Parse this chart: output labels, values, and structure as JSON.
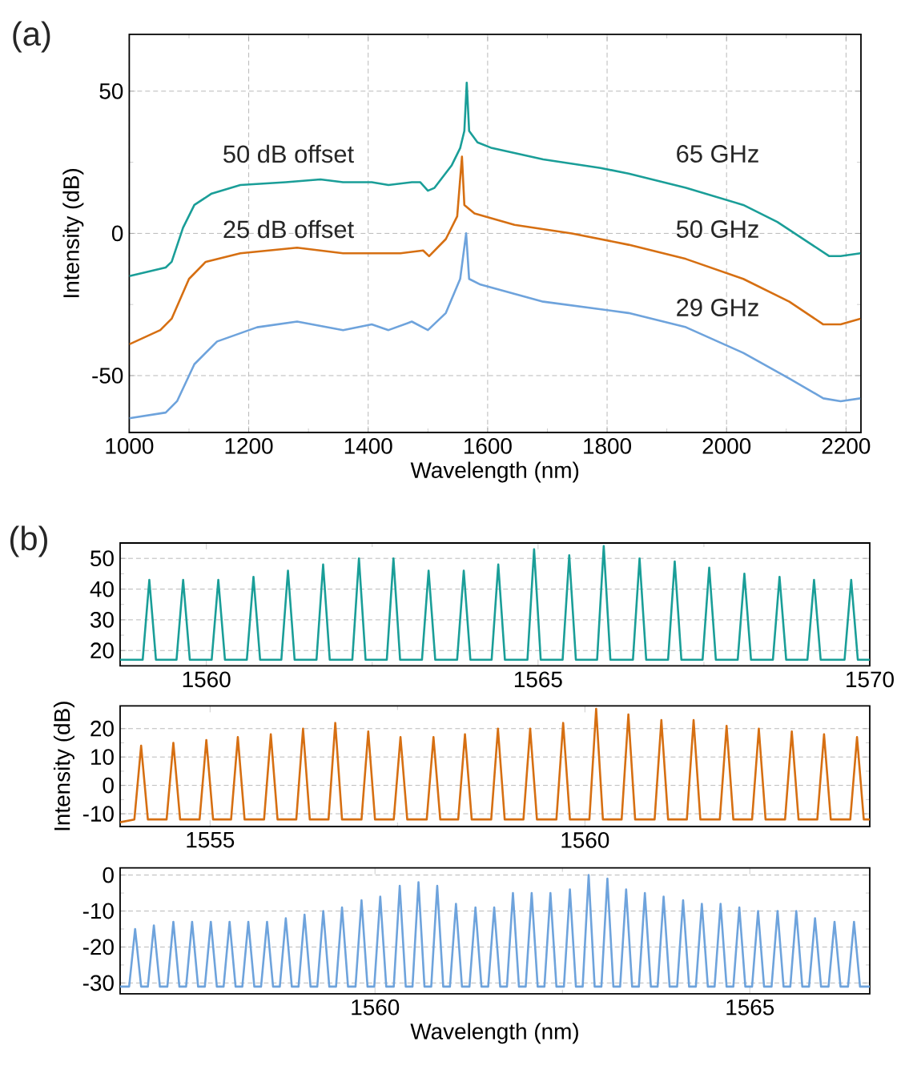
{
  "chart_data": [
    {
      "type": "line",
      "xlabel": "Wavelength (nm)",
      "ylabel": "Intensity (dB)",
      "xlim": [
        1000,
        2225
      ],
      "ylim": [
        -70,
        70
      ],
      "xticks": [
        1000,
        1200,
        1400,
        1600,
        1800,
        2000,
        2200
      ],
      "yticks": [
        -50,
        0,
        50
      ],
      "grid": true,
      "annotations": [
        "(a)",
        "50 dB offset",
        "25 dB offset",
        "65 GHz",
        "50 GHz",
        "29 GHz"
      ],
      "series": [
        {
          "color": "#1a9e98",
          "x": [
            1000,
            1061,
            1071,
            1090,
            1109,
            1138,
            1186,
            1262,
            1320,
            1358,
            1406,
            1434,
            1473,
            1487,
            1500,
            1511,
            1540,
            1554,
            1561,
            1565,
            1569,
            1583,
            1607,
            1693,
            1789,
            1836,
            1932,
            2028,
            2085,
            2143,
            2172,
            2191,
            2224
          ],
          "values": [
            -15,
            -12,
            -10,
            2,
            10,
            14,
            17,
            18,
            19,
            18,
            18,
            17,
            18,
            18,
            15,
            16,
            24,
            30,
            36,
            53,
            36,
            32,
            30,
            26,
            23,
            21,
            16,
            10,
            4,
            -4,
            -8,
            -8,
            -7
          ]
        },
        {
          "color": "#d66f12",
          "x": [
            1000,
            1052,
            1071,
            1100,
            1128,
            1186,
            1281,
            1358,
            1454,
            1492,
            1502,
            1530,
            1549,
            1557,
            1561,
            1578,
            1645,
            1741,
            1836,
            1932,
            2028,
            2105,
            2162,
            2191,
            2224
          ],
          "values": [
            -39,
            -34,
            -30,
            -16,
            -10,
            -7,
            -5,
            -7,
            -7,
            -6,
            -8,
            -2,
            6,
            27,
            10,
            7,
            3,
            0,
            -4,
            -9,
            -16,
            -24,
            -32,
            -32,
            -30
          ]
        },
        {
          "color": "#6ea3dc",
          "x": [
            1000,
            1061,
            1080,
            1109,
            1147,
            1214,
            1281,
            1358,
            1406,
            1434,
            1473,
            1500,
            1530,
            1554,
            1564,
            1569,
            1588,
            1693,
            1836,
            1932,
            2028,
            2105,
            2162,
            2191,
            2224
          ],
          "values": [
            -65,
            -63,
            -59,
            -46,
            -38,
            -33,
            -31,
            -34,
            -32,
            -34,
            -31,
            -34,
            -28,
            -16,
            0,
            -16,
            -18,
            -24,
            -28,
            -33,
            -42,
            -51,
            -58,
            -59,
            -58
          ]
        }
      ]
    },
    {
      "type": "line",
      "xlim": [
        1558.7,
        1570
      ],
      "ylim": [
        15,
        55
      ],
      "xticks": [
        1560,
        1565,
        1570
      ],
      "yticks": [
        20,
        30,
        40,
        50
      ],
      "grid": "y",
      "annotations": [
        "(b)"
      ],
      "series": [
        {
          "color": "#1a9e98",
          "x": [
            1558.7,
            1559.04,
            1559.14,
            1559.24,
            1559.55,
            1559.65,
            1559.75,
            1560.08,
            1560.18,
            1560.28,
            1560.61,
            1560.71,
            1560.81,
            1561.13,
            1561.23,
            1561.33,
            1561.66,
            1561.76,
            1561.86,
            1562.2,
            1562.3,
            1562.4,
            1562.72,
            1562.82,
            1562.92,
            1563.25,
            1563.35,
            1563.45,
            1563.78,
            1563.88,
            1563.98,
            1564.3,
            1564.4,
            1564.5,
            1564.84,
            1564.94,
            1565.04,
            1565.37,
            1565.47,
            1565.57,
            1565.89,
            1565.99,
            1566.09,
            1566.43,
            1566.53,
            1566.63,
            1566.96,
            1567.06,
            1567.16,
            1567.48,
            1567.58,
            1567.68,
            1568.01,
            1568.11,
            1568.21,
            1568.54,
            1568.64,
            1568.74,
            1569.06,
            1569.16,
            1569.26,
            1569.62,
            1569.72,
            1569.82,
            1570
          ],
          "values": [
            17,
            17,
            43,
            17,
            17,
            43,
            17,
            17,
            43,
            17,
            17,
            44,
            17,
            17,
            46,
            17,
            17,
            48,
            17,
            17,
            50,
            17,
            17,
            50,
            17,
            17,
            46,
            17,
            17,
            46,
            17,
            17,
            48,
            17,
            17,
            53,
            17,
            17,
            51,
            17,
            17,
            54,
            17,
            17,
            50,
            17,
            17,
            49,
            17,
            17,
            47,
            17,
            17,
            45,
            17,
            17,
            44,
            17,
            17,
            43,
            17,
            17,
            43,
            17,
            17
          ]
        }
      ]
    },
    {
      "type": "line",
      "ylabel": "Intensity (dB)",
      "xlim": [
        1553.8,
        1563.8
      ],
      "ylim": [
        -14.5,
        28
      ],
      "xticks": [
        1555,
        1560
      ],
      "yticks": [
        -10,
        0,
        10,
        20
      ],
      "grid": "y",
      "series": [
        {
          "color": "#d66f12",
          "x": [
            1553.8,
            1553.99,
            1554.08,
            1554.17,
            1554.42,
            1554.51,
            1554.6,
            1554.86,
            1554.95,
            1555.04,
            1555.28,
            1555.37,
            1555.46,
            1555.72,
            1555.81,
            1555.9,
            1556.15,
            1556.24,
            1556.33,
            1556.58,
            1556.67,
            1556.76,
            1557.02,
            1557.11,
            1557.2,
            1557.45,
            1557.54,
            1557.63,
            1557.89,
            1557.98,
            1558.07,
            1558.31,
            1558.4,
            1558.49,
            1558.75,
            1558.84,
            1558.93,
            1559.18,
            1559.27,
            1559.36,
            1559.62,
            1559.71,
            1559.8,
            1560.06,
            1560.15,
            1560.24,
            1560.49,
            1560.58,
            1560.67,
            1560.93,
            1561.02,
            1561.11,
            1561.36,
            1561.45,
            1561.54,
            1561.8,
            1561.89,
            1561.98,
            1562.23,
            1562.32,
            1562.41,
            1562.67,
            1562.76,
            1562.85,
            1563.1,
            1563.19,
            1563.28,
            1563.54,
            1563.63,
            1563.72,
            1563.8
          ],
          "values": [
            -13,
            -12,
            14,
            -12,
            -12,
            15,
            -12,
            -12,
            16,
            -12,
            -12,
            17,
            -12,
            -12,
            18,
            -12,
            -12,
            20,
            -12,
            -12,
            22,
            -12,
            -12,
            19,
            -12,
            -12,
            17,
            -12,
            -12,
            17,
            -12,
            -12,
            18,
            -12,
            -12,
            20,
            -12,
            -12,
            20,
            -12,
            -12,
            22,
            -12,
            -12,
            27,
            -12,
            -12,
            25,
            -12,
            -12,
            23,
            -12,
            -12,
            23,
            -12,
            -12,
            21,
            -12,
            -12,
            20,
            -12,
            -12,
            19,
            -12,
            -12,
            18,
            -12,
            -12,
            17,
            -12,
            -12
          ]
        }
      ]
    },
    {
      "type": "line",
      "xlabel": "Wavelength (nm)",
      "xlim": [
        1556.6,
        1566.6
      ],
      "ylim": [
        -33,
        2
      ],
      "xticks": [
        1560,
        1565
      ],
      "yticks": [
        -30,
        -20,
        -10,
        0
      ],
      "grid": "y",
      "series": [
        {
          "color": "#6ea3dc",
          "x": [
            1556.6,
            1556.72,
            1556.8,
            1556.88,
            1556.97,
            1557.05,
            1557.13,
            1557.23,
            1557.31,
            1557.39,
            1557.48,
            1557.56,
            1557.64,
            1557.73,
            1557.81,
            1557.89,
            1557.98,
            1558.06,
            1558.14,
            1558.23,
            1558.31,
            1558.39,
            1558.48,
            1558.56,
            1558.64,
            1558.73,
            1558.81,
            1558.89,
            1558.98,
            1559.06,
            1559.14,
            1559.23,
            1559.31,
            1559.39,
            1559.48,
            1559.56,
            1559.64,
            1559.74,
            1559.82,
            1559.9,
            1559.99,
            1560.07,
            1560.15,
            1560.25,
            1560.33,
            1560.41,
            1560.5,
            1560.58,
            1560.66,
            1560.75,
            1560.83,
            1560.91,
            1561,
            1561.08,
            1561.16,
            1561.26,
            1561.34,
            1561.42,
            1561.51,
            1561.59,
            1561.67,
            1561.76,
            1561.84,
            1561.92,
            1562.01,
            1562.09,
            1562.17,
            1562.26,
            1562.34,
            1562.42,
            1562.52,
            1562.6,
            1562.68,
            1562.77,
            1562.85,
            1562.93,
            1563.02,
            1563.1,
            1563.18,
            1563.27,
            1563.35,
            1563.43,
            1563.52,
            1563.6,
            1563.68,
            1563.77,
            1563.85,
            1563.93,
            1564.03,
            1564.11,
            1564.19,
            1564.28,
            1564.36,
            1564.44,
            1564.53,
            1564.61,
            1564.69,
            1564.78,
            1564.86,
            1564.94,
            1565.03,
            1565.11,
            1565.19,
            1565.29,
            1565.37,
            1565.45,
            1565.54,
            1565.62,
            1565.7,
            1565.79,
            1565.87,
            1565.95,
            1566.05,
            1566.13,
            1566.21,
            1566.31,
            1566.39,
            1566.47,
            1566.6
          ],
          "values": [
            -31,
            -31,
            -15,
            -31,
            -31,
            -14,
            -31,
            -31,
            -13,
            -31,
            -31,
            -13,
            -31,
            -31,
            -13,
            -31,
            -31,
            -13,
            -31,
            -31,
            -13,
            -31,
            -31,
            -13,
            -31,
            -31,
            -12,
            -31,
            -31,
            -11,
            -31,
            -31,
            -10,
            -31,
            -31,
            -9,
            -31,
            -31,
            -7,
            -31,
            -31,
            -6,
            -31,
            -31,
            -3,
            -31,
            -31,
            -2,
            -31,
            -31,
            -3,
            -31,
            -31,
            -8,
            -31,
            -31,
            -9,
            -31,
            -31,
            -9,
            -31,
            -31,
            -5,
            -31,
            -31,
            -5,
            -31,
            -31,
            -5,
            -31,
            -31,
            -4,
            -31,
            -31,
            0,
            -31,
            -31,
            -1,
            -31,
            -31,
            -4,
            -31,
            -31,
            -5,
            -31,
            -31,
            -6,
            -31,
            -31,
            -7,
            -31,
            -31,
            -8,
            -31,
            -31,
            -8,
            -31,
            -31,
            -9,
            -31,
            -31,
            -10,
            -31,
            -31,
            -10,
            -31,
            -31,
            -10,
            -31,
            -31,
            -12,
            -31,
            -31,
            -13,
            -31,
            -31,
            -13,
            -31,
            -31
          ]
        }
      ]
    }
  ]
}
